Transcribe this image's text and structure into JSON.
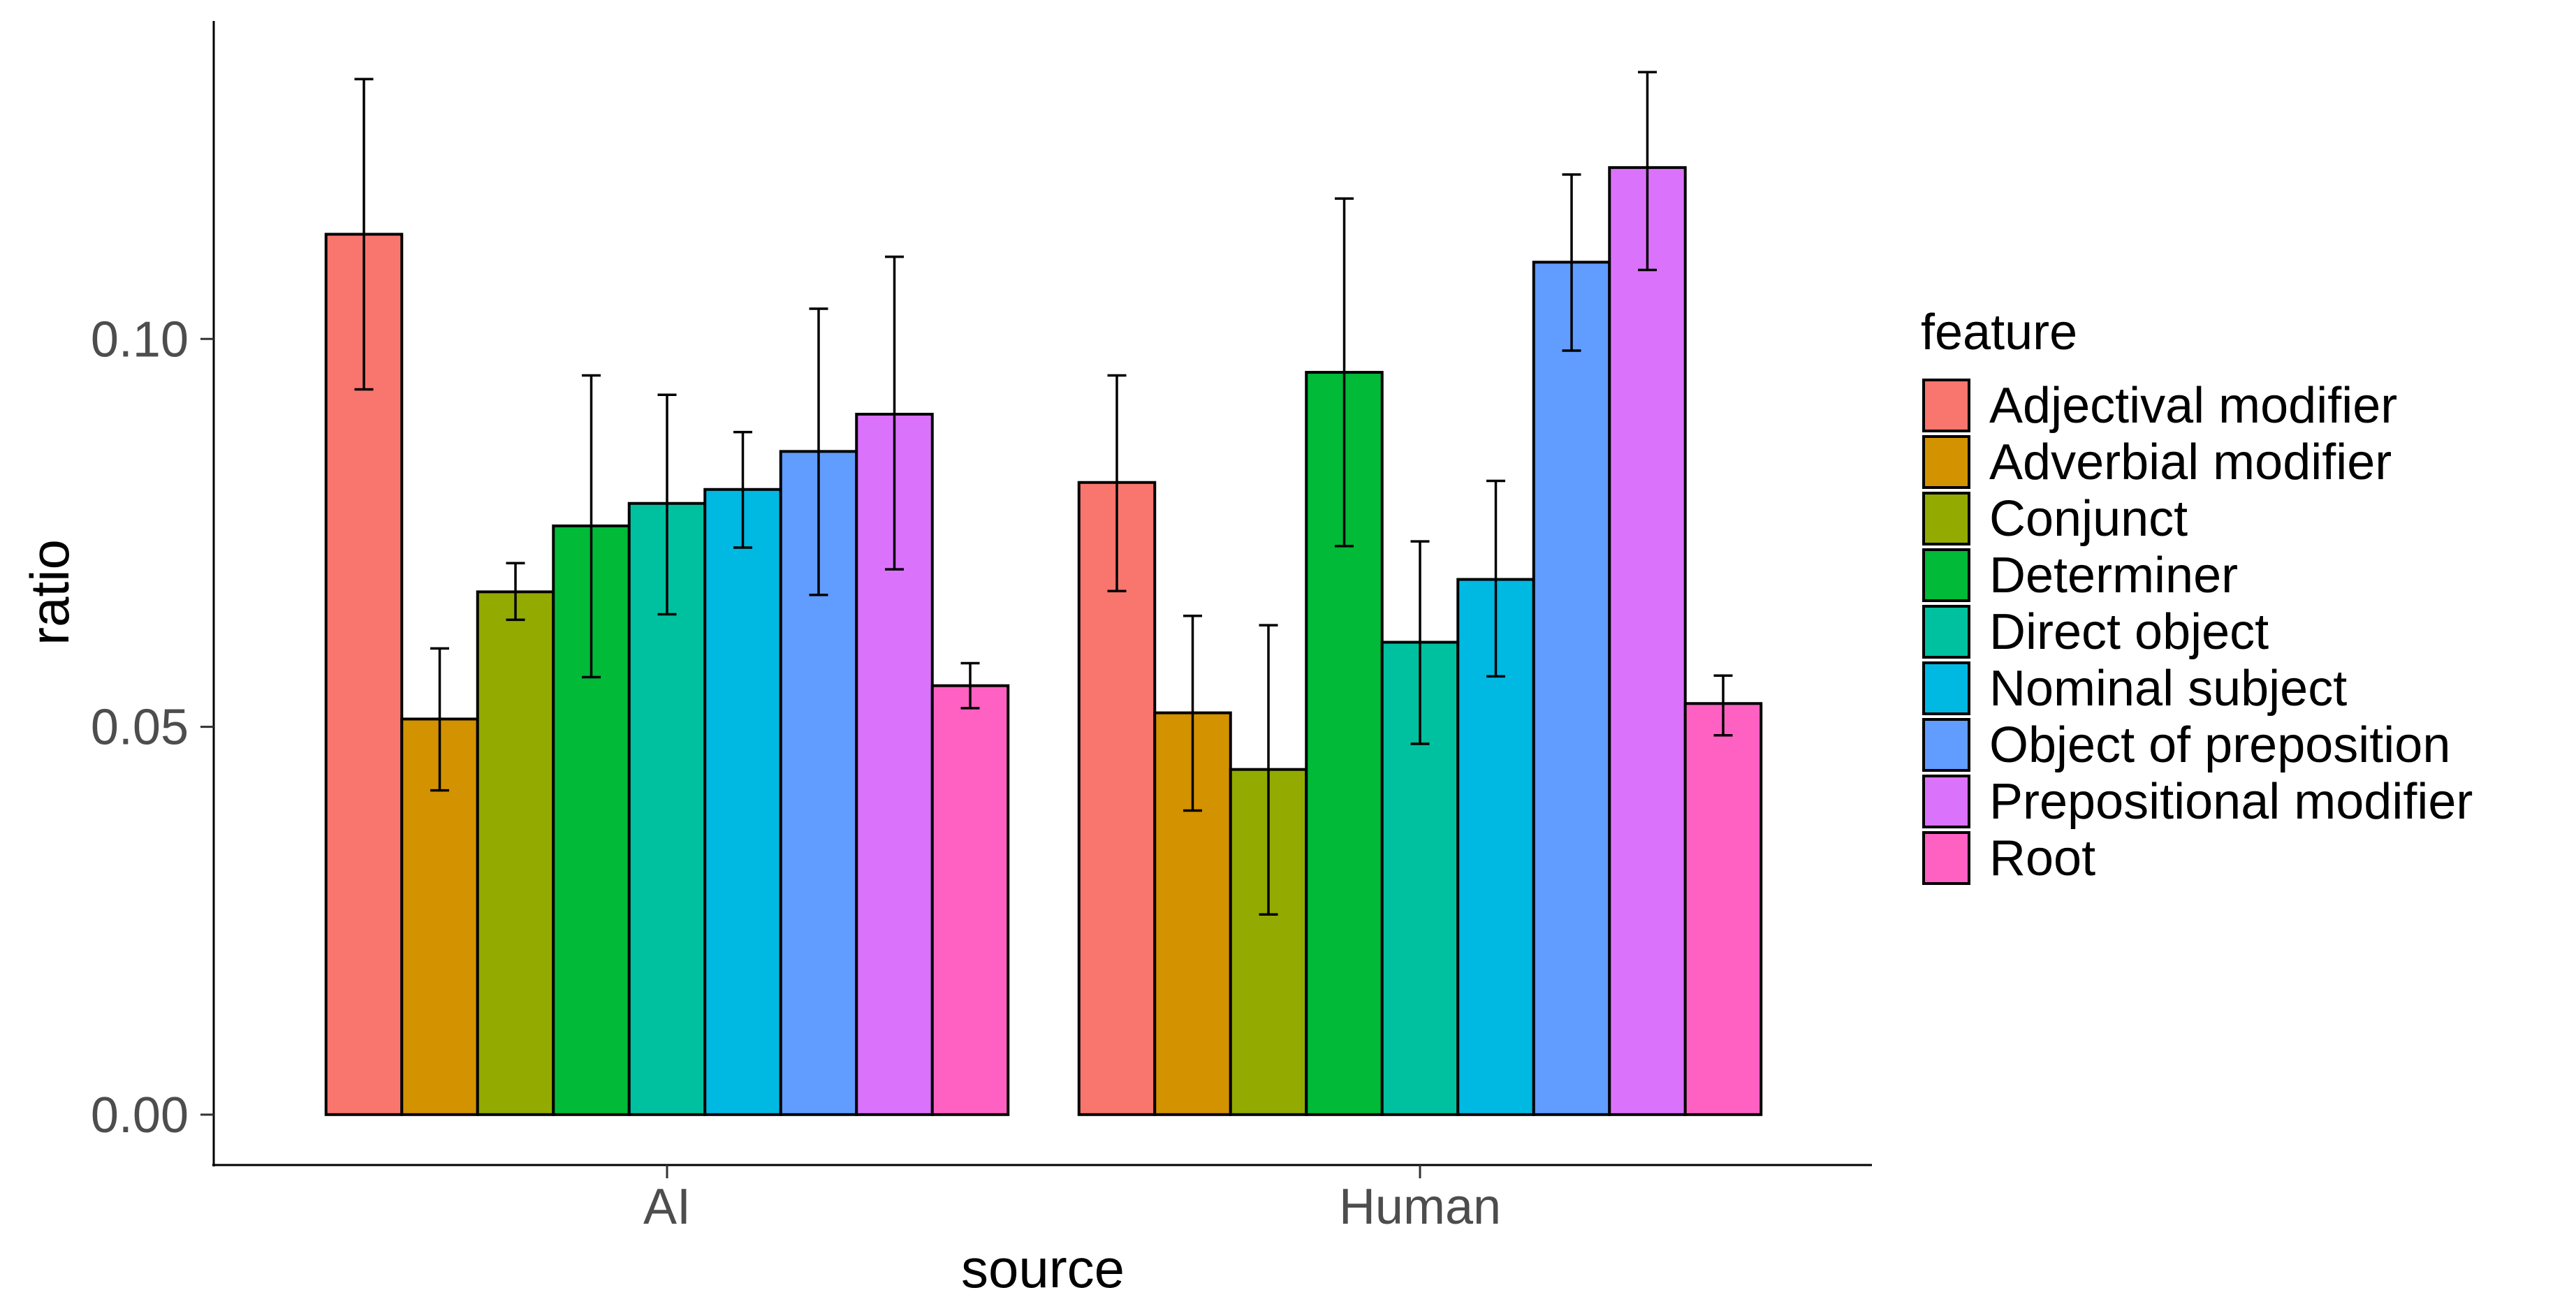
{
  "chart_data": {
    "type": "bar",
    "xlabel": "source",
    "ylabel": "ratio",
    "ylim": [
      -0.0065,
      0.141
    ],
    "yticks": [
      0.0,
      0.05,
      0.1
    ],
    "ytick_labels": [
      "0.00",
      "0.05",
      "0.10"
    ],
    "categories": [
      "AI",
      "Human"
    ],
    "legend_title": "feature",
    "legend_position": "right",
    "grid": false,
    "series": [
      {
        "name": "Adjectival modifier",
        "color": "#F8766D",
        "values": [
          0.1135,
          0.0815
        ],
        "err_low": [
          0.0935,
          0.0675
        ],
        "err_high": [
          0.1335,
          0.0953
        ]
      },
      {
        "name": "Adverbial modifier",
        "color": "#D39200",
        "values": [
          0.051,
          0.0518
        ],
        "err_low": [
          0.0418,
          0.0392
        ],
        "err_high": [
          0.0601,
          0.0643
        ]
      },
      {
        "name": "Conjunct",
        "color": "#93AA00",
        "values": [
          0.0674,
          0.0445
        ],
        "err_low": [
          0.0638,
          0.0258
        ],
        "err_high": [
          0.0711,
          0.0631
        ]
      },
      {
        "name": "Determiner",
        "color": "#00BA38",
        "values": [
          0.0759,
          0.0957
        ],
        "err_low": [
          0.0564,
          0.0733
        ],
        "err_high": [
          0.0953,
          0.1181
        ]
      },
      {
        "name": "Direct object",
        "color": "#00C19F",
        "values": [
          0.0788,
          0.0609
        ],
        "err_low": [
          0.0645,
          0.0478
        ],
        "err_high": [
          0.0928,
          0.0739
        ]
      },
      {
        "name": "Nominal subject",
        "color": "#00B9E3",
        "values": [
          0.0806,
          0.069
        ],
        "err_low": [
          0.0731,
          0.0565
        ],
        "err_high": [
          0.088,
          0.0817
        ]
      },
      {
        "name": "Object of preposition",
        "color": "#619CFF",
        "values": [
          0.0855,
          0.1099
        ],
        "err_low": [
          0.067,
          0.0985
        ],
        "err_high": [
          0.1039,
          0.1212
        ]
      },
      {
        "name": "Prepositional modifier",
        "color": "#DB72FB",
        "values": [
          0.0903,
          0.1221
        ],
        "err_low": [
          0.0703,
          0.1089
        ],
        "err_high": [
          0.1106,
          0.1344
        ]
      },
      {
        "name": "Root",
        "color": "#FF61C3",
        "values": [
          0.0553,
          0.053
        ],
        "err_low": [
          0.0524,
          0.0489
        ],
        "err_high": [
          0.0582,
          0.0566
        ]
      }
    ]
  }
}
